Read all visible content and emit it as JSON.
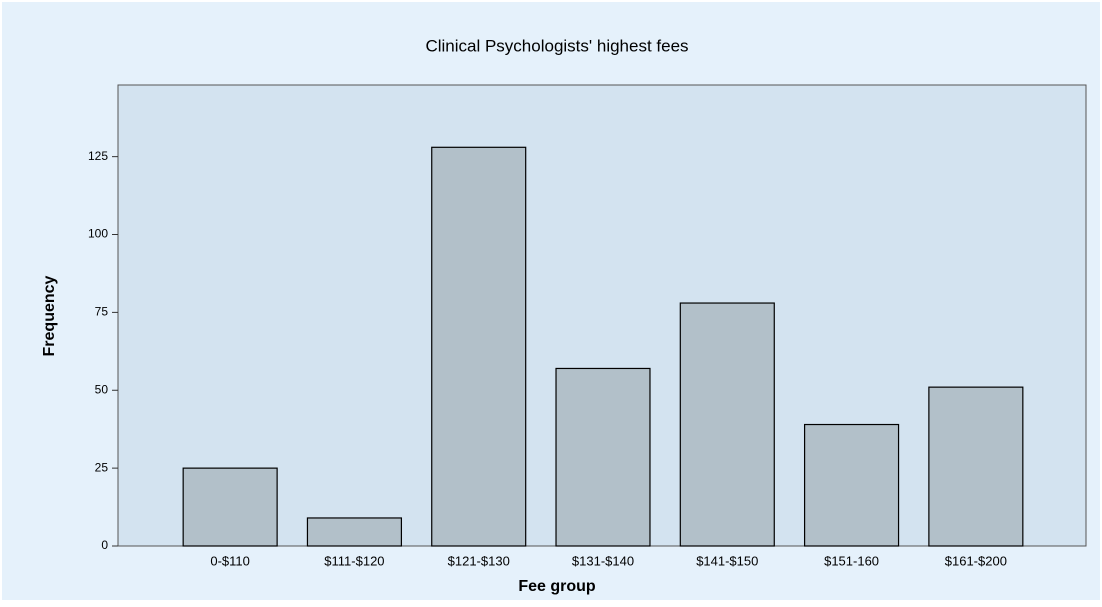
{
  "chart_data": {
    "type": "bar",
    "title": "Clinical Psychologists' highest fees",
    "x_label": "Fee group",
    "y_label": "Frequency",
    "categories": [
      "0-$110",
      "$111-$120",
      "$121-$130",
      "$131-$140",
      "$141-$150",
      "$151-160",
      "$161-$200"
    ],
    "values": [
      25,
      9,
      128,
      57,
      78,
      39,
      51
    ],
    "color": "#b2c0c9",
    "ylim": [
      0,
      148
    ],
    "yticks": [
      0,
      25,
      50,
      75,
      100,
      125
    ],
    "grid": false
  }
}
